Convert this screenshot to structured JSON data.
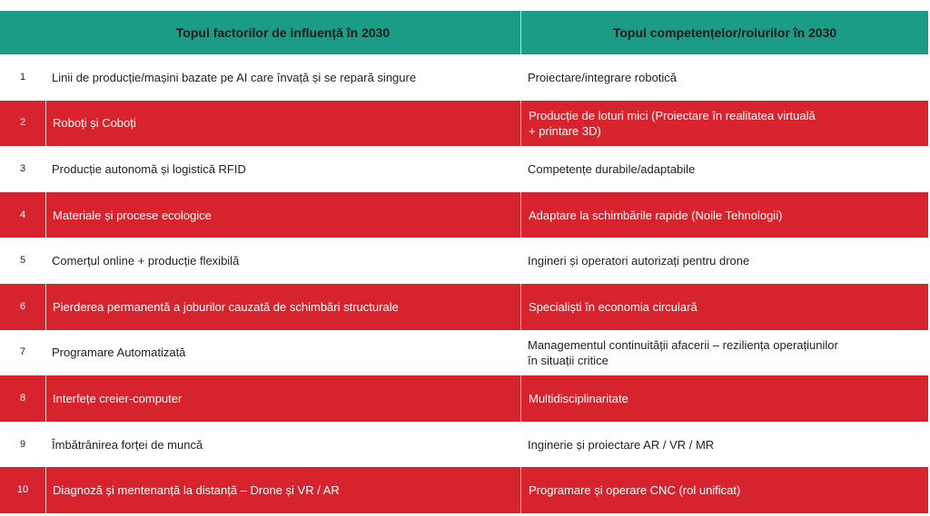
{
  "table": {
    "header": [
      "Topul factorilor de influență în 2030",
      "Topul competențelor/rolurilor în 2030"
    ],
    "rows": [
      [
        "1",
        "Linii de producție/mașini bazate pe AI care învață și se repară singure",
        "Proiectare/integrare robotică"
      ],
      [
        "2",
        "Roboți și Coboți",
        "Producție de loturi mici (Proiectare în realitatea virtuală\n+ printare 3D)"
      ],
      [
        "3",
        "Producție autonomă și logistică RFID",
        "Competențe durabile/adaptabile"
      ],
      [
        "4",
        "Materiale și procese ecologice",
        "Adaptare la schimbările rapide (Noile Tehnologii)"
      ],
      [
        "5",
        "Comerțul online + producție flexibilă",
        "Ingineri și operatori autorizați pentru drone"
      ],
      [
        "6",
        "Pierderea permanentă a joburilor cauzată de schimbări structurale",
        "Specialiști în economia circulară"
      ],
      [
        "7",
        "Programare Automatizată",
        "Managementul continuității afacerii – reziliența operațiunilor\nîn situații critice"
      ],
      [
        "8",
        "Interfețe creier-computer",
        "Multidisciplinaritate"
      ],
      [
        "9",
        "Îmbătrânirea forței de muncă",
        "Inginerie și proiectare AR / VR / MR"
      ],
      [
        "10",
        "Diagnoză și mentenanță la distanță – Drone și VR / AR",
        "Programare și operare CNC (rol unificat)"
      ]
    ]
  }
}
